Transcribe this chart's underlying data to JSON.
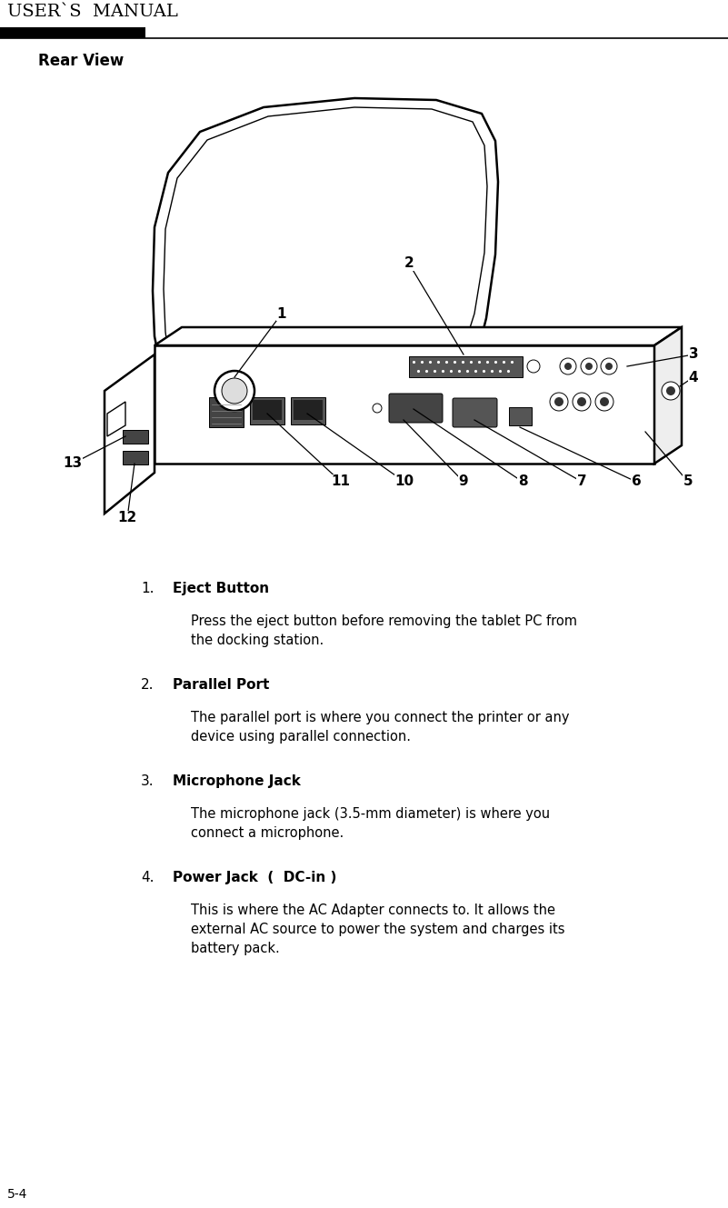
{
  "bg_color": "#ffffff",
  "header_text": "USER`S  MANUAL",
  "header_font_size": 14,
  "section_title": "Rear View",
  "section_title_fontsize": 12,
  "footer_text": "5-4",
  "items": [
    {
      "num": "1.",
      "title": "Eject Button",
      "body": "Press the eject button before removing the tablet PC from\nthe docking station."
    },
    {
      "num": "2.",
      "title": "Parallel Port",
      "body": "The parallel port is where you connect the printer or any\ndevice using parallel connection."
    },
    {
      "num": "3.",
      "title": "Microphone Jack",
      "body": "The microphone jack (3.5-mm diameter) is where you\nconnect a microphone."
    },
    {
      "num": "4.",
      "title": "Power Jack  (  DC-in )",
      "body": "This is where the AC Adapter connects to. It allows the\nexternal AC source to power the system and charges its\nbattery pack."
    }
  ]
}
